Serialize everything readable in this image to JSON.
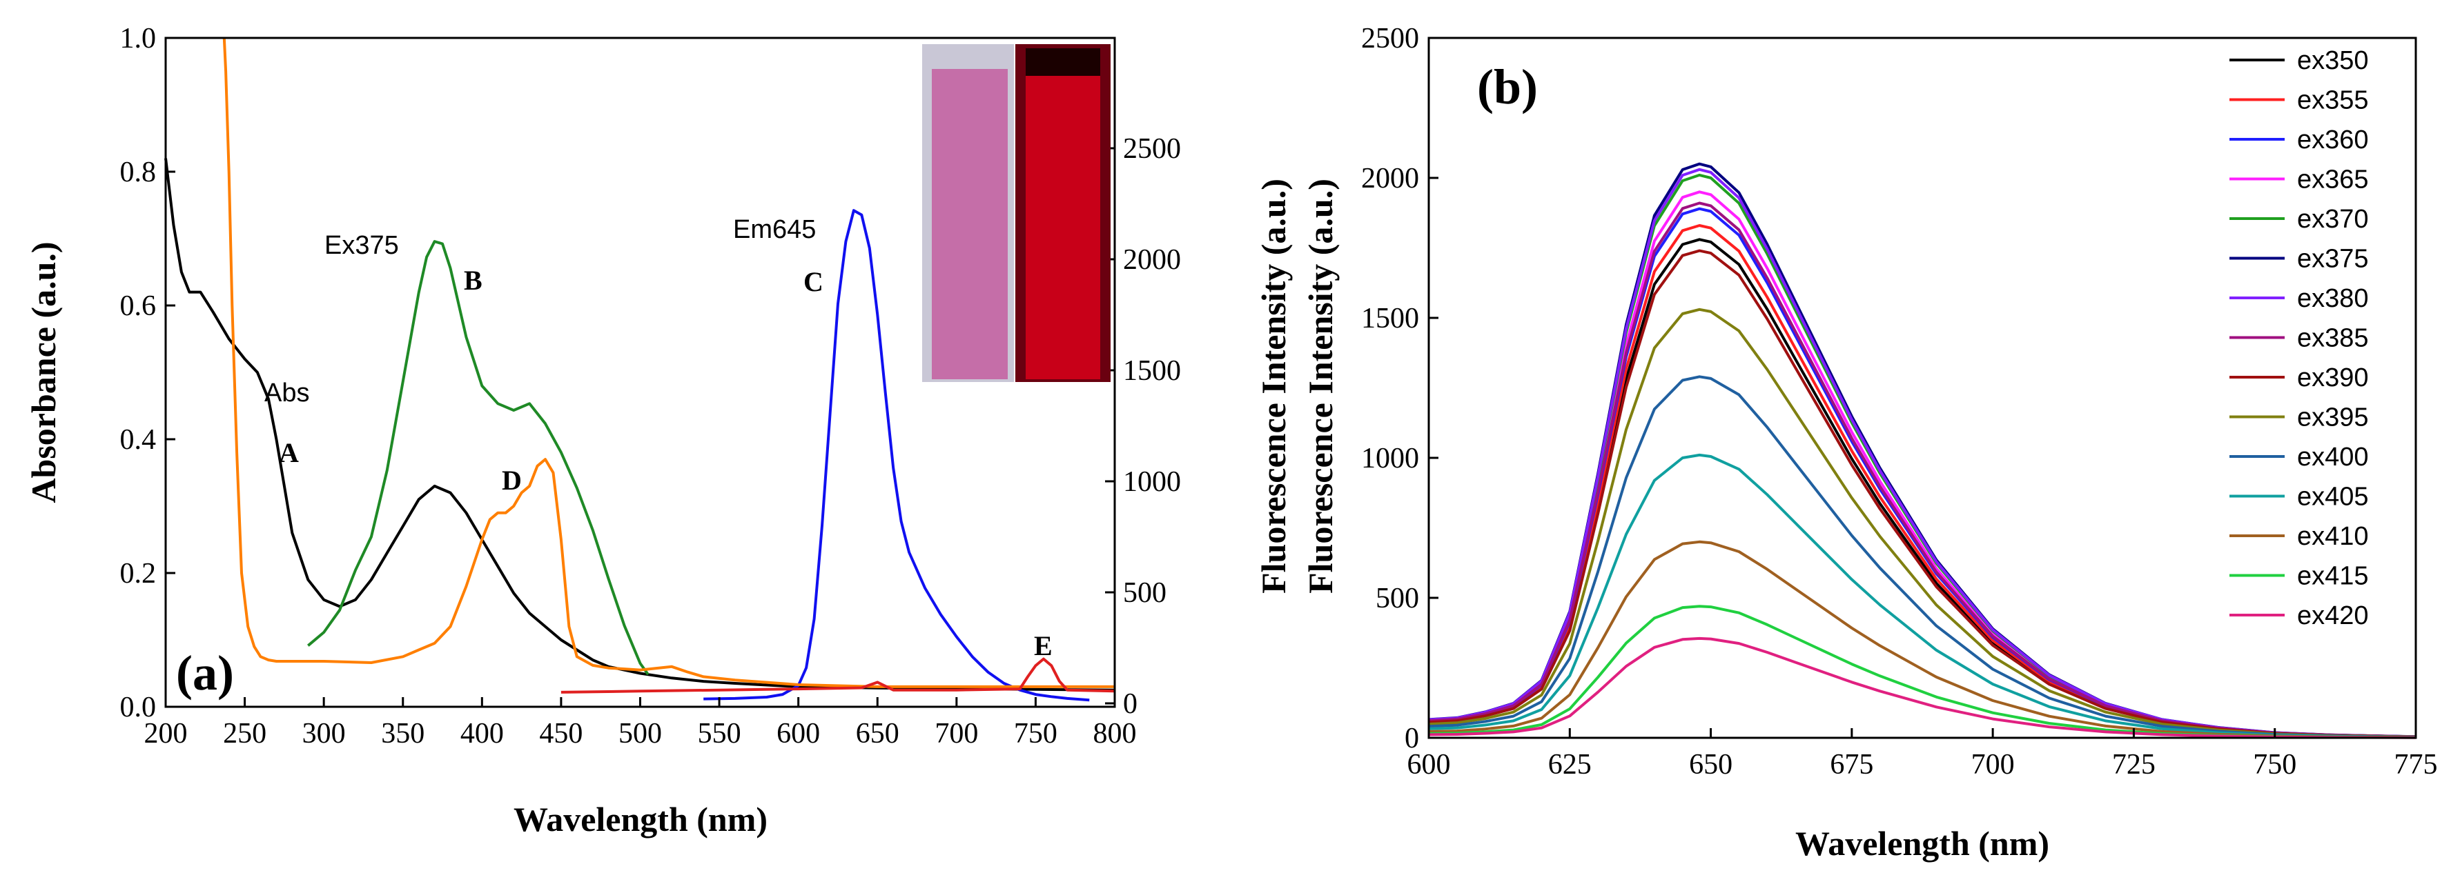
{
  "chart_data": [
    {
      "type": "line",
      "panel_label": "(a)",
      "xlabel": "Wavelength (nm)",
      "ylabel_left": "Absorbance (a.u.)",
      "ylabel_right": "Fluorescence Intensity (a.u.)",
      "xlim": [
        200,
        800
      ],
      "ylim_left": [
        0,
        1.0
      ],
      "ylim_right": [
        0,
        3000
      ],
      "x_ticks": [
        "200",
        "250",
        "300",
        "350",
        "400",
        "450",
        "500",
        "550",
        "600",
        "650",
        "700",
        "750",
        "800"
      ],
      "y_left_ticks": [
        "0.0",
        "0.2",
        "0.4",
        "0.6",
        "0.8",
        "1.0"
      ],
      "y_right_ticks": [
        "0",
        "500",
        "1000",
        "1500",
        "2000",
        "2500"
      ],
      "annotations": [
        {
          "text": "Ex375",
          "key": "ex375"
        },
        {
          "text": "B",
          "key": "B"
        },
        {
          "text": "Em645",
          "key": "em645"
        },
        {
          "text": "C",
          "key": "C"
        },
        {
          "text": "Abs",
          "key": "abs"
        },
        {
          "text": "A",
          "key": "A"
        },
        {
          "text": "D",
          "key": "D"
        },
        {
          "text": "E",
          "key": "E"
        }
      ],
      "series": [
        {
          "name": "A (Abs)",
          "axis": "left",
          "color": "#000000",
          "x": [
            200,
            205,
            210,
            215,
            222,
            230,
            240,
            250,
            258,
            265,
            270,
            275,
            280,
            290,
            300,
            310,
            320,
            330,
            340,
            350,
            360,
            370,
            380,
            390,
            400,
            410,
            420,
            430,
            440,
            450,
            460,
            470,
            480,
            500,
            520,
            540,
            560,
            600,
            650,
            700,
            750,
            800
          ],
          "y": [
            0.82,
            0.72,
            0.65,
            0.62,
            0.62,
            0.59,
            0.55,
            0.52,
            0.5,
            0.46,
            0.4,
            0.33,
            0.26,
            0.19,
            0.16,
            0.15,
            0.16,
            0.19,
            0.23,
            0.27,
            0.31,
            0.33,
            0.32,
            0.29,
            0.25,
            0.21,
            0.17,
            0.14,
            0.12,
            0.1,
            0.085,
            0.07,
            0.06,
            0.05,
            0.043,
            0.038,
            0.035,
            0.03,
            0.028,
            0.027,
            0.026,
            0.025
          ]
        },
        {
          "name": "B (Ex375)",
          "axis": "right",
          "color": "#1f8a26",
          "x": [
            290,
            300,
            310,
            320,
            330,
            340,
            350,
            360,
            365,
            370,
            375,
            380,
            390,
            400,
            410,
            420,
            430,
            440,
            450,
            460,
            470,
            480,
            490,
            500,
            505
          ],
          "y": [
            260,
            320,
            420,
            600,
            750,
            1050,
            1450,
            1850,
            2010,
            2080,
            2070,
            1960,
            1650,
            1430,
            1350,
            1320,
            1350,
            1260,
            1130,
            970,
            780,
            560,
            350,
            180,
            130
          ]
        },
        {
          "name": "C (Em645)",
          "axis": "right",
          "color": "#1010f0",
          "x": [
            540,
            560,
            580,
            590,
            600,
            605,
            610,
            615,
            620,
            625,
            630,
            635,
            640,
            645,
            650,
            655,
            660,
            665,
            670,
            680,
            690,
            700,
            710,
            720,
            730,
            740,
            750,
            760,
            770,
            784
          ],
          "y": [
            20,
            22,
            28,
            40,
            80,
            160,
            380,
            800,
            1300,
            1800,
            2080,
            2220,
            2200,
            2050,
            1750,
            1400,
            1060,
            820,
            680,
            520,
            400,
            300,
            210,
            140,
            90,
            60,
            40,
            30,
            22,
            15
          ]
        },
        {
          "name": "D",
          "axis": "left",
          "color": "#ff7f00",
          "x": [
            237,
            238,
            240,
            242,
            245,
            248,
            252,
            256,
            260,
            265,
            270,
            280,
            300,
            330,
            350,
            360,
            370,
            380,
            390,
            400,
            405,
            410,
            415,
            420,
            425,
            430,
            435,
            440,
            445,
            450,
            455,
            460,
            470,
            480,
            500,
            520,
            530,
            540,
            560,
            600,
            650,
            700,
            750,
            800
          ],
          "y": [
            1.0,
            0.95,
            0.8,
            0.6,
            0.38,
            0.2,
            0.12,
            0.09,
            0.075,
            0.07,
            0.068,
            0.068,
            0.068,
            0.066,
            0.075,
            0.085,
            0.095,
            0.12,
            0.18,
            0.25,
            0.28,
            0.29,
            0.29,
            0.3,
            0.32,
            0.33,
            0.36,
            0.37,
            0.35,
            0.25,
            0.12,
            0.075,
            0.062,
            0.058,
            0.055,
            0.06,
            0.052,
            0.045,
            0.04,
            0.033,
            0.03,
            0.03,
            0.03,
            0.03
          ]
        },
        {
          "name": "E",
          "axis": "right",
          "color": "#e02020",
          "x": [
            450,
            500,
            550,
            600,
            640,
            650,
            660,
            700,
            740,
            745,
            750,
            755,
            760,
            765,
            770,
            800
          ],
          "y": [
            50,
            55,
            60,
            65,
            70,
            95,
            60,
            60,
            65,
            120,
            170,
            200,
            170,
            100,
            60,
            55
          ]
        }
      ]
    },
    {
      "type": "line",
      "panel_label": "(b)",
      "xlabel": "Wavelength (nm)",
      "ylabel": "Fluorescence Intensity (a.u.)",
      "xlim": [
        600,
        775
      ],
      "ylim": [
        0,
        2500
      ],
      "x_ticks": [
        "600",
        "625",
        "650",
        "675",
        "700",
        "725",
        "750",
        "775"
      ],
      "y_ticks": [
        "0",
        "500",
        "1000",
        "1500",
        "2000",
        "2500"
      ],
      "peak_wavelength": 648,
      "series": [
        {
          "name": "ex350",
          "color": "#000000",
          "peak": 1780
        },
        {
          "name": "ex355",
          "color": "#ff2020",
          "peak": 1830
        },
        {
          "name": "ex360",
          "color": "#2020ff",
          "peak": 1890
        },
        {
          "name": "ex365",
          "color": "#ff20ff",
          "peak": 1950
        },
        {
          "name": "ex370",
          "color": "#20a020",
          "peak": 2010
        },
        {
          "name": "ex375",
          "color": "#000080",
          "peak": 2050
        },
        {
          "name": "ex380",
          "color": "#8020ff",
          "peak": 2030
        },
        {
          "name": "ex385",
          "color": "#a01080",
          "peak": 1910
        },
        {
          "name": "ex390",
          "color": "#a01010",
          "peak": 1740
        },
        {
          "name": "ex395",
          "color": "#808010",
          "peak": 1530
        },
        {
          "name": "ex400",
          "color": "#2060a0",
          "peak": 1290
        },
        {
          "name": "ex405",
          "color": "#10a0a0",
          "peak": 1010
        },
        {
          "name": "ex410",
          "color": "#a06020",
          "peak": 700
        },
        {
          "name": "ex415",
          "color": "#20d040",
          "peak": 470
        },
        {
          "name": "ex420",
          "color": "#e02080",
          "peak": 355
        }
      ]
    }
  ]
}
